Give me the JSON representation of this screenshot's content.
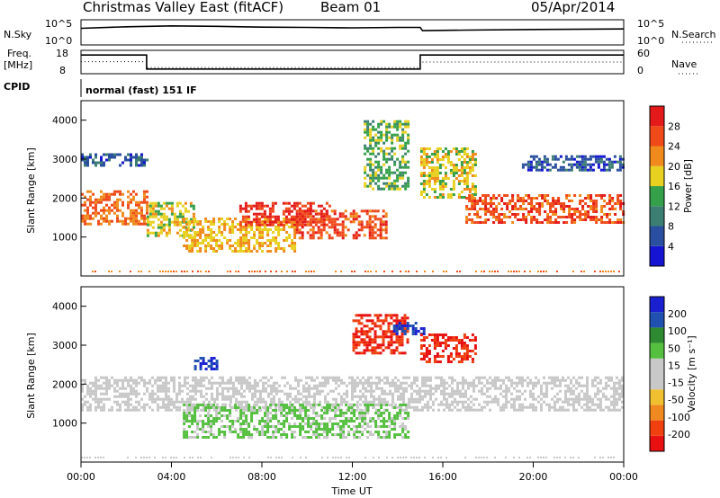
{
  "header": {
    "title": "Christmas Valley East (fitACF)",
    "beam": "Beam 01",
    "date": "05/Apr/2014"
  },
  "strip_panels": {
    "noise": {
      "left_label": "N.Sky",
      "right_label": "N.Search",
      "left_ticks": [
        "10^5",
        "10^0"
      ],
      "right_ticks": [
        "10^5",
        "10^0"
      ]
    },
    "frequency": {
      "left_label_line1": "Freq.",
      "left_label_line2": "[MHz]",
      "right_label": "Nave",
      "left_ticks": [
        "18",
        "8"
      ],
      "right_ticks": [
        "60",
        "0"
      ]
    },
    "cpid": {
      "label": "CPID",
      "text": "normal (fast) 151 IF"
    }
  },
  "axes": {
    "xlabel": "Time UT",
    "x_ticks": [
      "00:00",
      "04:00",
      "08:00",
      "12:00",
      "16:00",
      "20:00",
      "00:00"
    ],
    "ylabel": "Slant Range [km]",
    "y_ticks": [
      "1000",
      "2000",
      "3000",
      "4000"
    ]
  },
  "colors": {
    "power": [
      "#1414d2",
      "#2b4fa0",
      "#3c7f72",
      "#35a04a",
      "#e8d020",
      "#f08a1c",
      "#f04a1a",
      "#e41a1a"
    ],
    "velocity": [
      "#e81010",
      "#f04010",
      "#f08a20",
      "#f0c030",
      "#c8c8c8",
      "#c8c8c8",
      "#55c040",
      "#2e8a30",
      "#2050b0",
      "#1a20d0"
    ]
  },
  "chart_data": [
    {
      "type": "line",
      "title": "N.Sky / N.Search",
      "xlabel": "Time UT",
      "x_range": [
        0,
        24
      ],
      "y_scale": "log",
      "ylim": [
        1,
        100000
      ],
      "series": [
        {
          "x": [
            0.0,
            2.0,
            4.0,
            6.0,
            8.0,
            10.0,
            12.0,
            14.0,
            15.0,
            15.1,
            17.0,
            20.0,
            24.0
          ],
          "values": [
            2000,
            4000,
            6000,
            5000,
            3500,
            3000,
            2500,
            3000,
            3000,
            700,
            900,
            1200,
            1500
          ]
        }
      ]
    },
    {
      "type": "line",
      "title": "Freq. / Nave",
      "x_range": [
        0,
        24
      ],
      "ylim": [
        8,
        18
      ],
      "y2lim": [
        0,
        60
      ],
      "series": [
        {
          "x": [
            0.0,
            2.9,
            2.9,
            15.0,
            15.0,
            24.0
          ],
          "values": [
            16.0,
            16.0,
            10.0,
            10.0,
            16.0,
            16.0
          ]
        },
        {
          "x": [
            0.0,
            2.9,
            2.9,
            15.0,
            15.0,
            24.0
          ],
          "values": [
            31,
            31,
            16,
            16,
            30,
            30
          ]
        }
      ]
    },
    {
      "type": "heatmap",
      "quantity": "Power",
      "colorbar_label": "Power [dB]",
      "colorbar_ticks": [
        "4",
        "8",
        "12",
        "16",
        "20",
        "24",
        "28"
      ],
      "clim": [
        0,
        32
      ],
      "x_range": [
        0,
        24
      ],
      "ylim": [
        0,
        4500
      ],
      "echo_regions": [
        {
          "t": [
            0.0,
            2.9
          ],
          "range_km": [
            1300,
            2200
          ],
          "power_db": 24
        },
        {
          "t": [
            0.0,
            2.9
          ],
          "range_km": [
            2850,
            3150
          ],
          "power_db": 6
        },
        {
          "t": [
            2.9,
            5.0
          ],
          "range_km": [
            1000,
            1900
          ],
          "power_db": 18
        },
        {
          "t": [
            4.5,
            9.5
          ],
          "range_km": [
            650,
            1500
          ],
          "power_db": 20
        },
        {
          "t": [
            7.0,
            11.0
          ],
          "range_km": [
            1300,
            1900
          ],
          "power_db": 28
        },
        {
          "t": [
            9.5,
            13.5
          ],
          "range_km": [
            1000,
            1700
          ],
          "power_db": 26
        },
        {
          "t": [
            12.5,
            14.5
          ],
          "range_km": [
            2200,
            4000
          ],
          "power_db": 14
        },
        {
          "t": [
            15.0,
            17.5
          ],
          "range_km": [
            2000,
            3300
          ],
          "power_db": 18
        },
        {
          "t": [
            17.0,
            24.0
          ],
          "range_km": [
            1400,
            2100
          ],
          "power_db": 26
        },
        {
          "t": [
            19.5,
            24.0
          ],
          "range_km": [
            2700,
            3100
          ],
          "power_db": 6
        }
      ]
    },
    {
      "type": "heatmap",
      "quantity": "Velocity",
      "colorbar_label": "Velocity [m s^-1]",
      "colorbar_ticks": [
        "200",
        "100",
        "50",
        "15",
        "-15",
        "-50",
        "-100",
        "-200"
      ],
      "clim": [
        -250,
        250
      ],
      "x_range": [
        0,
        24
      ],
      "ylim": [
        0,
        4500
      ],
      "echo_regions": [
        {
          "t": [
            0.0,
            24.0
          ],
          "range_km": [
            1300,
            2200
          ],
          "velocity_ms": 0
        },
        {
          "t": [
            4.5,
            14.5
          ],
          "range_km": [
            600,
            1500
          ],
          "velocity_ms": 60
        },
        {
          "t": [
            5.0,
            6.0
          ],
          "range_km": [
            2400,
            2700
          ],
          "velocity_ms": 200
        },
        {
          "t": [
            12.0,
            14.5
          ],
          "range_km": [
            2800,
            3800
          ],
          "velocity_ms": -200
        },
        {
          "t": [
            13.8,
            15.2
          ],
          "range_km": [
            3300,
            3600
          ],
          "velocity_ms": 200
        },
        {
          "t": [
            15.0,
            17.5
          ],
          "range_km": [
            2600,
            3300
          ],
          "velocity_ms": -200
        }
      ]
    }
  ]
}
